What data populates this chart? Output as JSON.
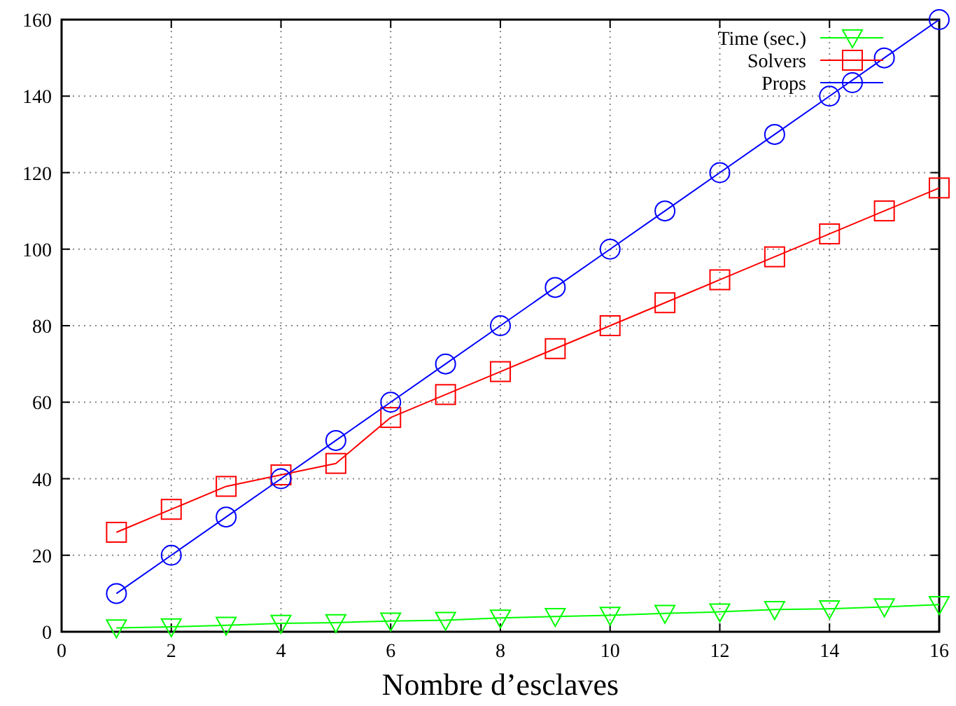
{
  "chart_data": {
    "type": "line",
    "xlabel": "Nombre d’esclaves",
    "x": [
      1,
      2,
      3,
      4,
      5,
      6,
      7,
      8,
      9,
      10,
      11,
      12,
      13,
      14,
      15,
      16
    ],
    "series": [
      {
        "name": "Time (sec.)",
        "color": "#00ff00",
        "marker": "triangle",
        "values": [
          1,
          1.3,
          1.7,
          2.2,
          2.4,
          2.8,
          3,
          3.6,
          4,
          4.3,
          4.8,
          5.2,
          5.8,
          6,
          6.5,
          7.1
        ]
      },
      {
        "name": "Solvers",
        "color": "#ff0000",
        "marker": "square",
        "values": [
          26,
          32,
          38,
          41,
          44,
          56,
          62,
          68,
          74,
          80,
          86,
          92,
          98,
          104,
          110,
          116
        ]
      },
      {
        "name": "Props",
        "color": "#0000ff",
        "marker": "circle",
        "values": [
          10,
          20,
          30,
          40,
          50,
          60,
          70,
          80,
          90,
          100,
          110,
          120,
          130,
          140,
          150,
          160
        ]
      }
    ],
    "xlim": [
      0,
      16
    ],
    "xticks": [
      0,
      2,
      4,
      6,
      8,
      10,
      12,
      14,
      16
    ],
    "ylim": [
      0,
      160
    ],
    "yticks": [
      0,
      20,
      40,
      60,
      80,
      100,
      120,
      140,
      160
    ],
    "grid": true,
    "legend": "top right",
    "line_style": "solid"
  }
}
